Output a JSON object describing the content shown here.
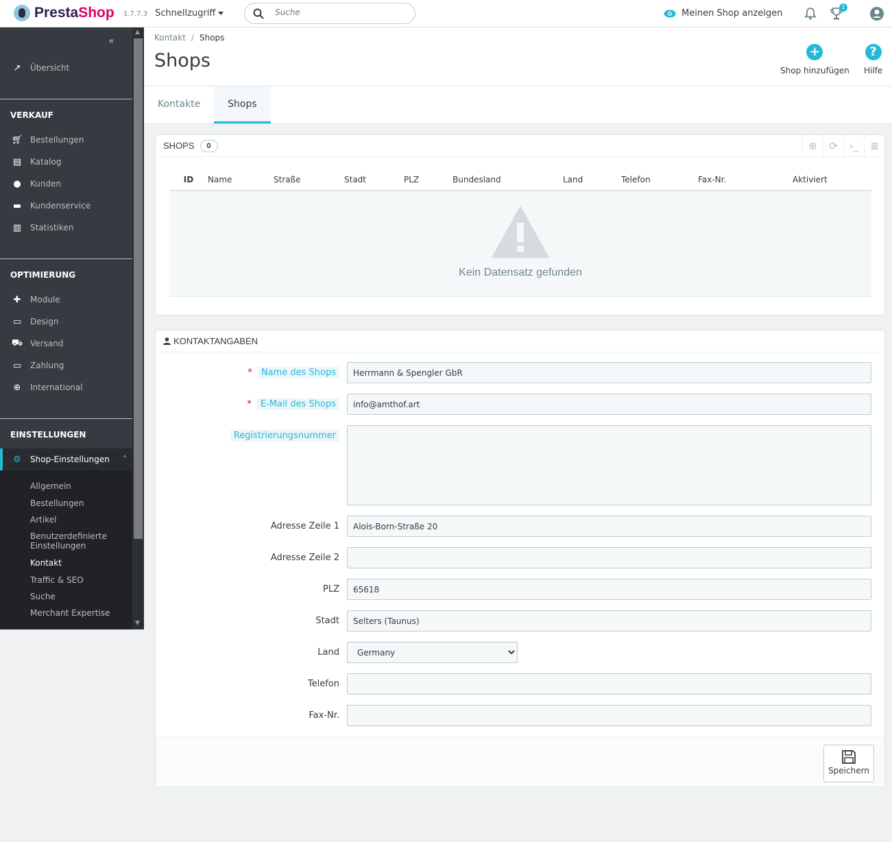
{
  "topbar": {
    "brand_a": "Presta",
    "brand_b": "Shop",
    "version": "1.7.7.3",
    "quick_access": "Schnellzugriff",
    "search_placeholder": "Suche",
    "view_shop": "Meinen Shop anzeigen",
    "notifications_badge": "1"
  },
  "sidebar": {
    "overview": "Übersicht",
    "sections": [
      {
        "title": "VERKAUF",
        "items": [
          "Bestellungen",
          "Katalog",
          "Kunden",
          "Kundenservice",
          "Statistiken"
        ]
      },
      {
        "title": "OPTIMIERUNG",
        "items": [
          "Module",
          "Design",
          "Versand",
          "Zahlung",
          "International"
        ]
      },
      {
        "title": "EINSTELLUNGEN",
        "items": [
          "Shop-Einstellungen"
        ]
      }
    ],
    "subitems": [
      "Allgemein",
      "Bestellungen",
      "Artikel",
      "Benutzerdefinierte Einstellungen",
      "Kontakt",
      "Traffic & SEO",
      "Suche",
      "Merchant Expertise"
    ],
    "active_subitem": "Kontakt"
  },
  "header": {
    "breadcrumb": [
      "Kontakt",
      "Shops"
    ],
    "title": "Shops",
    "add_shop": "Shop hinzufügen",
    "help": "Hilfe",
    "tabs": [
      "Kontakte",
      "Shops"
    ],
    "active_tab": "Shops"
  },
  "shops_panel": {
    "title": "SHOPS",
    "count": "0",
    "columns": [
      "ID",
      "Name",
      "Straße",
      "Stadt",
      "PLZ",
      "Bundesland",
      "Land",
      "Telefon",
      "Fax-Nr.",
      "Aktiviert"
    ],
    "empty": "Kein Datensatz gefunden"
  },
  "contact_panel": {
    "title": "KONTAKTANGABEN",
    "fields": [
      {
        "label": "Name des Shops",
        "value": "Herrmann & Spengler GbR",
        "required": true
      },
      {
        "label": "E-Mail des Shops",
        "value": "info@amthof.art",
        "required": true
      },
      {
        "label": "Registrierungsnummer",
        "value": ""
      },
      {
        "label": "Adresse Zeile 1",
        "value": "Alois-Born-Straße 20"
      },
      {
        "label": "Adresse Zeile 2",
        "value": ""
      },
      {
        "label": "PLZ",
        "value": "65618"
      },
      {
        "label": "Stadt",
        "value": "Selters (Taunus)"
      },
      {
        "label": "Land",
        "value": "Germany"
      },
      {
        "label": "Telefon",
        "value": ""
      },
      {
        "label": "Fax-Nr.",
        "value": ""
      }
    ],
    "save": "Speichern"
  },
  "colors": {
    "accent": "#25b9d7",
    "sidebar": "#363a41",
    "brand_pink": "#df0067"
  }
}
